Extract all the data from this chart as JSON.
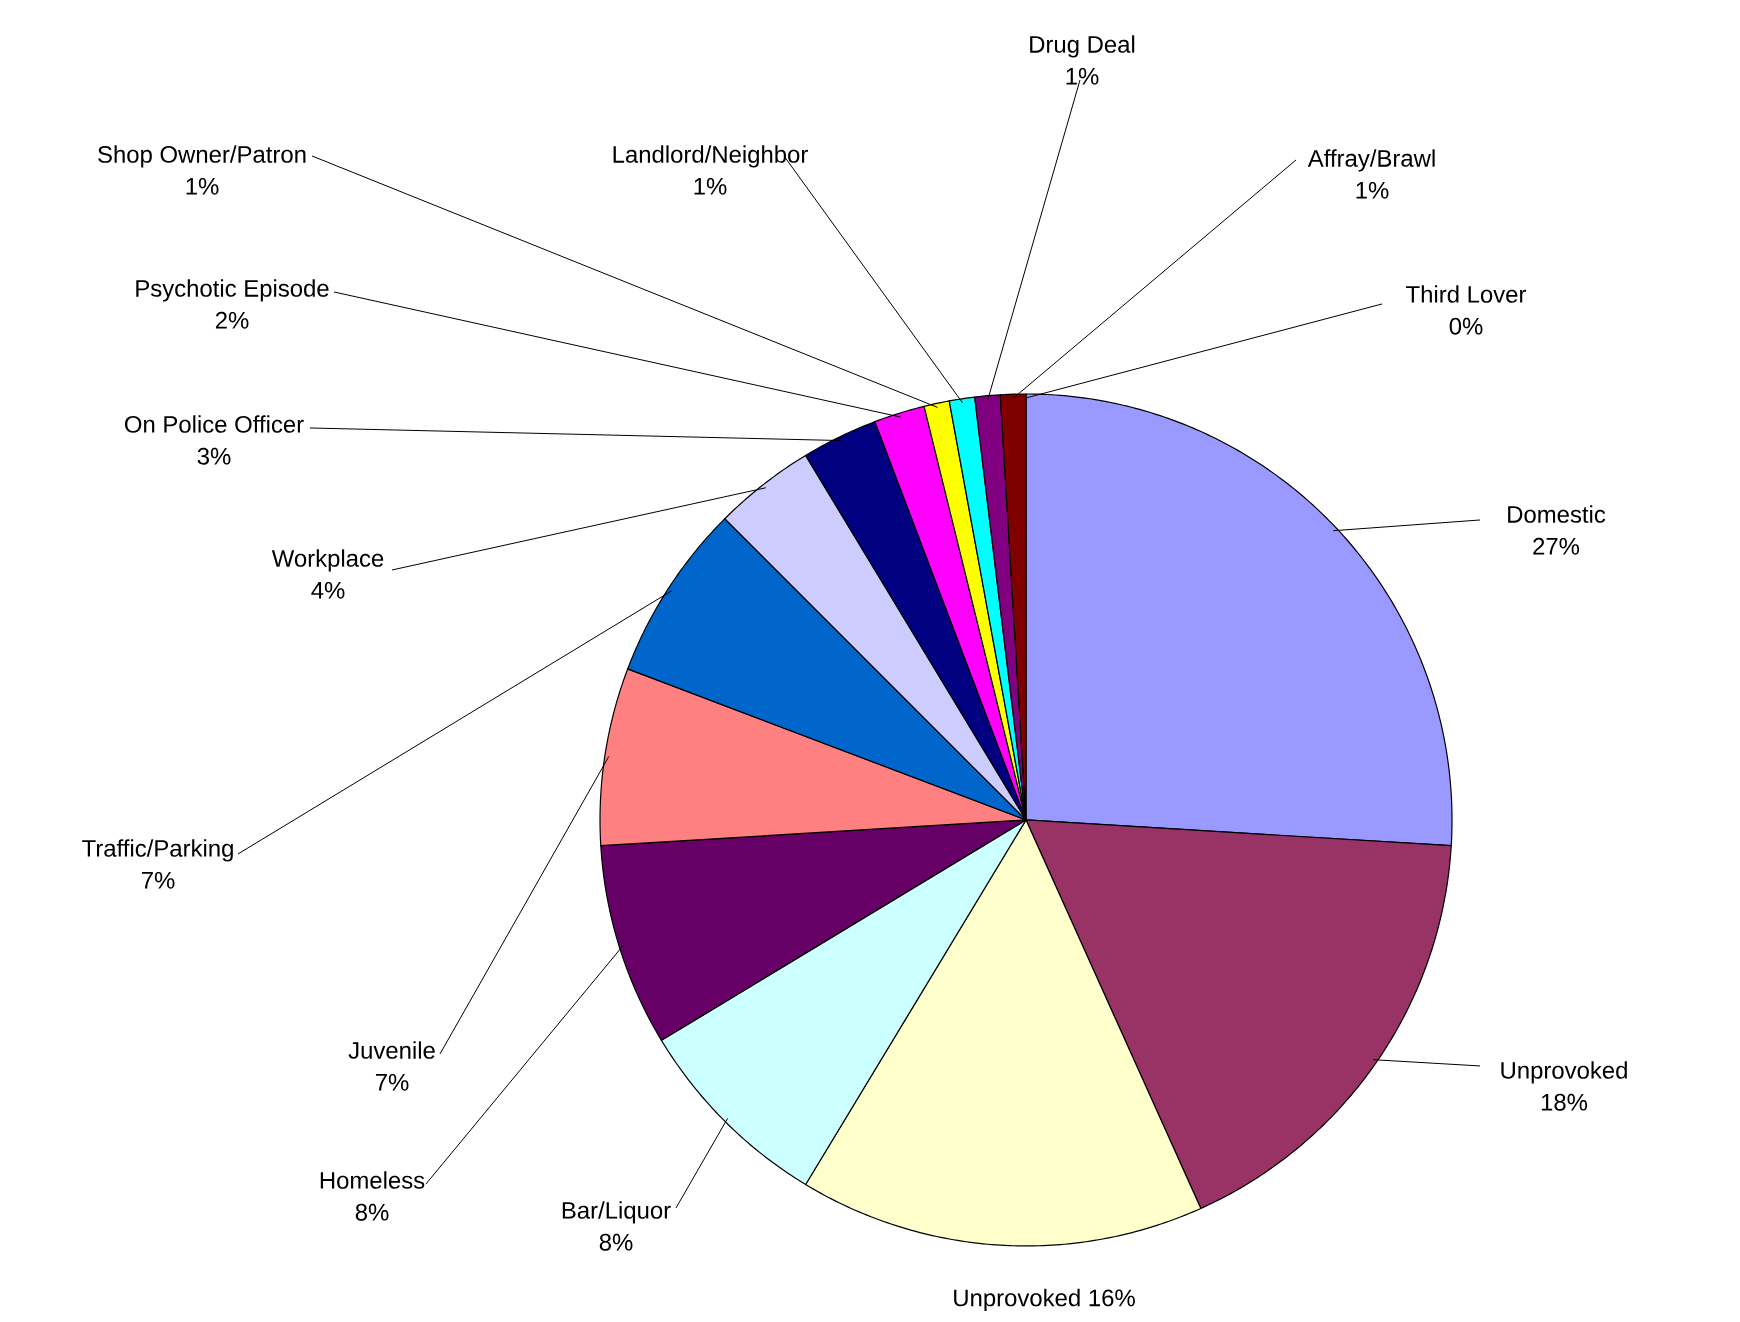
{
  "chart_data": {
    "type": "pie",
    "categories": [
      "Domestic",
      "Unprovoked",
      "Unprovoked",
      "Bar/Liquor",
      "Homeless",
      "Juvenile",
      "Traffic/Parking",
      "Workplace",
      "On Police Officer",
      "Psychotic Episode",
      "Shop Owner/Patron",
      "Landlord/Neighbor",
      "Drug Deal",
      "Affray/Brawl",
      "Third Lover"
    ],
    "values": [
      27,
      18,
      16,
      8,
      8,
      7,
      7,
      4,
      3,
      2,
      1,
      1,
      1,
      1,
      0
    ],
    "value_labels": [
      "27%",
      "18%",
      "16%",
      "8%",
      "8%",
      "7%",
      "7%",
      "4%",
      "3%",
      "2%",
      "1%",
      "1%",
      "1%",
      "1%",
      "0%"
    ],
    "colors": [
      "#9999ff",
      "#993366",
      "#ffffcc",
      "#ccffff",
      "#660066",
      "#ff8080",
      "#0066cc",
      "#ccccff",
      "#000080",
      "#ff00ff",
      "#ffff00",
      "#00ffff",
      "#800080",
      "#800000",
      "#ff0000"
    ]
  }
}
